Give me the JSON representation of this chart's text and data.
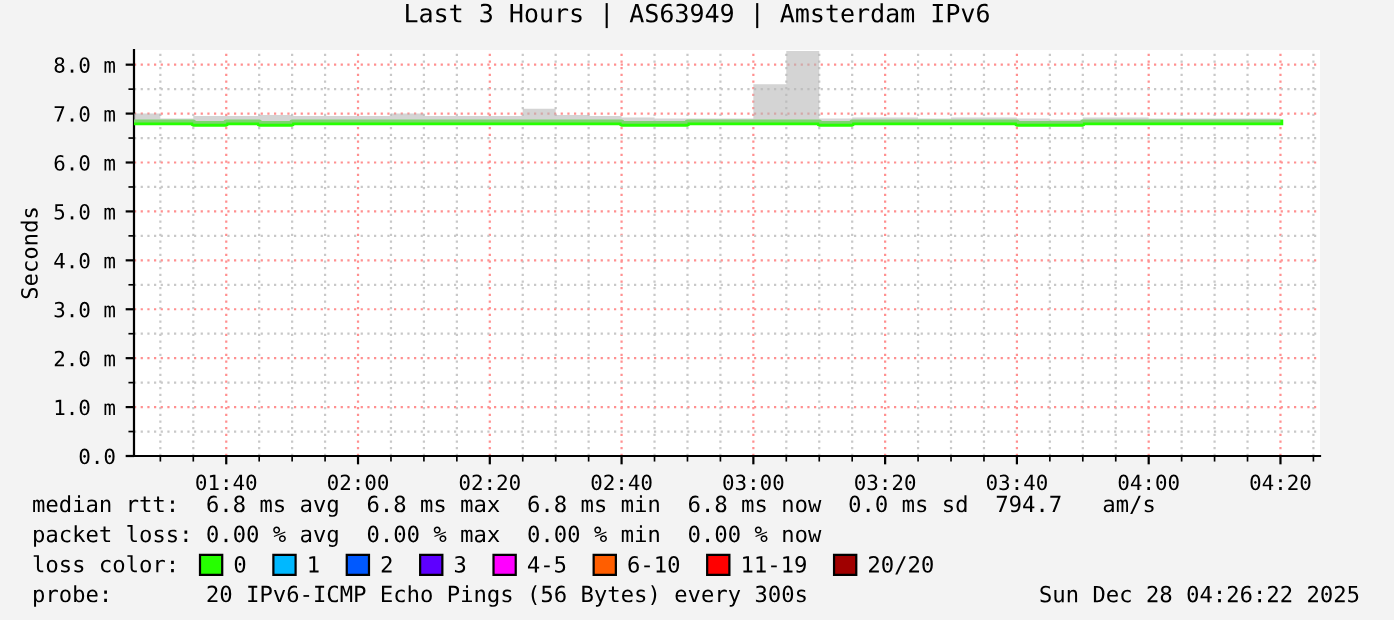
{
  "chart_data": {
    "type": "step",
    "title": "Last 3 Hours | AS63949 | Amsterdam IPv6",
    "ylabel": "Seconds",
    "x": [
      "2025-12-28T01:26",
      "2025-12-28T01:30",
      "2025-12-28T01:35",
      "2025-12-28T01:40",
      "2025-12-28T01:45",
      "2025-12-28T01:50",
      "2025-12-28T01:55",
      "2025-12-28T02:00",
      "2025-12-28T02:05",
      "2025-12-28T02:10",
      "2025-12-28T02:15",
      "2025-12-28T02:20",
      "2025-12-28T02:25",
      "2025-12-28T02:30",
      "2025-12-28T02:35",
      "2025-12-28T02:40",
      "2025-12-28T02:45",
      "2025-12-28T02:50",
      "2025-12-28T02:55",
      "2025-12-28T03:00",
      "2025-12-28T03:05",
      "2025-12-28T03:10",
      "2025-12-28T03:15",
      "2025-12-28T03:20",
      "2025-12-28T03:25",
      "2025-12-28T03:30",
      "2025-12-28T03:35",
      "2025-12-28T03:40",
      "2025-12-28T03:45",
      "2025-12-28T03:50",
      "2025-12-28T03:55",
      "2025-12-28T04:00",
      "2025-12-28T04:05",
      "2025-12-28T04:10",
      "2025-12-28T04:15",
      "2025-12-28T04:20"
    ],
    "series": [
      {
        "name": "0",
        "color": "#26ff00",
        "values": [
          6.82,
          6.82,
          6.79,
          6.82,
          6.79,
          6.82,
          6.82,
          6.82,
          6.82,
          6.82,
          6.82,
          6.82,
          6.82,
          6.82,
          6.82,
          6.79,
          6.79,
          6.82,
          6.82,
          6.82,
          6.82,
          6.79,
          6.82,
          6.82,
          6.82,
          6.82,
          6.82,
          6.79,
          6.79,
          6.82,
          6.82,
          6.82,
          6.82,
          6.82,
          6.82,
          6.82
        ],
        "lower": [
          6.82,
          6.82,
          6.79,
          6.82,
          6.79,
          6.82,
          6.82,
          6.82,
          6.82,
          6.82,
          6.82,
          6.82,
          6.82,
          6.82,
          6.82,
          6.79,
          6.79,
          6.82,
          6.82,
          6.82,
          6.82,
          6.79,
          6.82,
          6.82,
          6.82,
          6.82,
          6.82,
          6.79,
          6.79,
          6.82,
          6.82,
          6.82,
          6.82,
          6.82,
          6.82,
          6.82
        ],
        "upper": [
          7.0,
          6.9,
          6.95,
          6.95,
          6.97,
          6.95,
          6.95,
          6.95,
          7.0,
          6.95,
          6.95,
          6.95,
          7.1,
          6.97,
          6.95,
          6.92,
          6.9,
          6.9,
          6.9,
          7.6,
          8.28,
          6.9,
          6.92,
          6.92,
          6.9,
          6.92,
          6.92,
          6.9,
          6.88,
          6.92,
          6.92,
          6.9,
          6.9,
          6.9,
          6.9,
          6.9
        ]
      },
      {
        "name": "1",
        "color": "#00b8ff",
        "values": [
          null,
          null,
          null,
          null,
          null,
          null,
          null,
          null,
          null,
          null,
          null,
          null,
          null,
          null,
          null,
          null,
          null,
          null,
          null,
          null,
          null,
          null,
          null,
          null,
          null,
          null,
          null,
          null,
          null,
          null,
          null,
          null,
          null,
          null,
          null,
          null
        ]
      },
      {
        "name": "2",
        "color": "#0059ff",
        "values": [
          null,
          null,
          null,
          null,
          null,
          null,
          null,
          null,
          null,
          null,
          null,
          null,
          null,
          null,
          null,
          null,
          null,
          null,
          null,
          null,
          null,
          null,
          null,
          null,
          null,
          null,
          null,
          null,
          null,
          null,
          null,
          null,
          null,
          null,
          null,
          null
        ]
      },
      {
        "name": "3",
        "color": "#5e00ff",
        "values": [
          null,
          null,
          null,
          null,
          null,
          null,
          null,
          null,
          null,
          null,
          null,
          null,
          null,
          null,
          null,
          null,
          null,
          null,
          null,
          null,
          null,
          null,
          null,
          null,
          null,
          null,
          null,
          null,
          null,
          null,
          null,
          null,
          null,
          null,
          null,
          null
        ]
      },
      {
        "name": "4-5",
        "color": "#ff00ff",
        "values": [
          null,
          null,
          null,
          null,
          null,
          null,
          null,
          null,
          null,
          null,
          null,
          null,
          null,
          null,
          null,
          null,
          null,
          null,
          null,
          null,
          null,
          null,
          null,
          null,
          null,
          null,
          null,
          null,
          null,
          null,
          null,
          null,
          null,
          null,
          null,
          null
        ]
      },
      {
        "name": "6-10",
        "color": "#ff5e00",
        "values": [
          null,
          null,
          null,
          null,
          null,
          null,
          null,
          null,
          null,
          null,
          null,
          null,
          null,
          null,
          null,
          null,
          null,
          null,
          null,
          null,
          null,
          null,
          null,
          null,
          null,
          null,
          null,
          null,
          null,
          null,
          null,
          null,
          null,
          null,
          null,
          null
        ]
      },
      {
        "name": "11-19",
        "color": "#ff0000",
        "values": [
          null,
          null,
          null,
          null,
          null,
          null,
          null,
          null,
          null,
          null,
          null,
          null,
          null,
          null,
          null,
          null,
          null,
          null,
          null,
          null,
          null,
          null,
          null,
          null,
          null,
          null,
          null,
          null,
          null,
          null,
          null,
          null,
          null,
          null,
          null,
          null
        ]
      },
      {
        "name": "20/20",
        "color": "#a00000",
        "values": [
          null,
          null,
          null,
          null,
          null,
          null,
          null,
          null,
          null,
          null,
          null,
          null,
          null,
          null,
          null,
          null,
          null,
          null,
          null,
          null,
          null,
          null,
          null,
          null,
          null,
          null,
          null,
          null,
          null,
          null,
          null,
          null,
          null,
          null,
          null,
          null
        ]
      }
    ],
    "xlim": [
      "2025-12-28T01:26",
      "2025-12-28T04:26"
    ],
    "xticks": [
      {
        "value": "2025-12-28T01:40",
        "label": "01:40"
      },
      {
        "value": "2025-12-28T02:00",
        "label": "02:00"
      },
      {
        "value": "2025-12-28T02:20",
        "label": "02:20"
      },
      {
        "value": "2025-12-28T02:40",
        "label": "02:40"
      },
      {
        "value": "2025-12-28T03:00",
        "label": "03:00"
      },
      {
        "value": "2025-12-28T03:20",
        "label": "03:20"
      },
      {
        "value": "2025-12-28T03:40",
        "label": "03:40"
      },
      {
        "value": "2025-12-28T04:00",
        "label": "04:00"
      },
      {
        "value": "2025-12-28T04:20",
        "label": "04:20"
      }
    ],
    "ylim": [
      0,
      8.3
    ],
    "yticks": [
      {
        "value": 0,
        "label": "0.0"
      },
      {
        "value": 1,
        "label": "1.0 m"
      },
      {
        "value": 2,
        "label": "2.0 m"
      },
      {
        "value": 3,
        "label": "3.0 m"
      },
      {
        "value": 4,
        "label": "4.0 m"
      },
      {
        "value": 5,
        "label": "5.0 m"
      },
      {
        "value": 6,
        "label": "6.0 m"
      },
      {
        "value": 7,
        "label": "7.0 m"
      },
      {
        "value": 8,
        "label": "8.0 m"
      }
    ],
    "grid": true,
    "legend": "bottom",
    "legend_title": "loss color:",
    "annotations": [
      "median rtt:  6.8 ms avg  6.8 ms max  6.8 ms min  6.8 ms now  0.0 ms sd  794.7   am/s",
      "packet loss: 0.00 % avg  0.00 % max  0.00 % min  0.00 % now",
      "probe:       20 IPv6-ICMP Echo Pings (56 Bytes) every 300s",
      "Sun Dec 28 04:26:22 2025"
    ]
  }
}
